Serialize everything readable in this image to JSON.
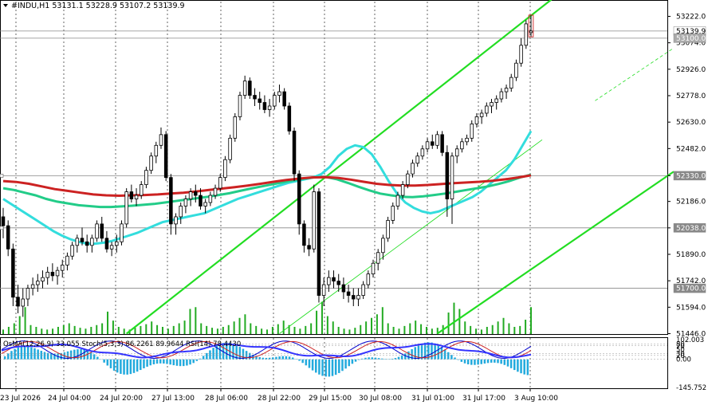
{
  "header": {
    "title": "#INDU,H1  53131.1 53228.9 53107.2 53139.9",
    "indicator_label": "OsMA(12,26,9) 33.055  Stoch(5,3,3) 86.2261 89.9644  RSI(14) 78.4430"
  },
  "colors": {
    "candle": "#000000",
    "channel": "#22dd22",
    "ma_fast": "#33dddd",
    "ma_mid": "#22cc88",
    "ma_slow": "#cc2222",
    "volume": "#22aa22",
    "osma": "#22aadd",
    "stoch_main": "#0000cc",
    "stoch_signal": "#cc2222",
    "rsi": "#3333ff",
    "grid": "#000000",
    "hline": "#888888"
  },
  "chart_data": [
    {
      "type": "candlestick",
      "title": "#INDU,H1",
      "last_ohlc": {
        "open": 53131.1,
        "high": 53228.9,
        "low": 53107.2,
        "close": 53139.9
      },
      "ylim": [
        51446,
        53300
      ],
      "y_ticks": [
        "53222.0",
        "53074.0",
        "52926.0",
        "52778.0",
        "52630.0",
        "52482.0",
        "52330.0",
        "52186.0",
        "52038.0",
        "51890.0",
        "51742.0",
        "51594.0",
        "51446.0"
      ],
      "price_tags": [
        "53139.9",
        "53100.0",
        "52330.0",
        "52038.0",
        "51700.0"
      ],
      "x_ticks": [
        "23 Jul 2026",
        "24 Jul 04:00",
        "24 Jul 20:00",
        "27 Jul 13:00",
        "28 Jul 06:00",
        "28 Jul 22:00",
        "29 Jul 15:00",
        "30 Jul 08:00",
        "31 Jul 01:00",
        "31 Jul 17:00",
        "3 Aug 10:00"
      ],
      "candles": [
        [
          52100,
          52150,
          51980,
          52050
        ],
        [
          52050,
          52080,
          51880,
          51920
        ],
        [
          51920,
          51950,
          51600,
          51650
        ],
        [
          51650,
          51720,
          51560,
          51600
        ],
        [
          51600,
          51700,
          51540,
          51640
        ],
        [
          51640,
          51720,
          51600,
          51700
        ],
        [
          51700,
          51760,
          51660,
          51720
        ],
        [
          51720,
          51780,
          51680,
          51740
        ],
        [
          51740,
          51800,
          51700,
          51760
        ],
        [
          51760,
          51820,
          51720,
          51790
        ],
        [
          51790,
          51840,
          51740,
          51770
        ],
        [
          51770,
          51820,
          51720,
          51800
        ],
        [
          51800,
          51860,
          51760,
          51830
        ],
        [
          51830,
          51900,
          51800,
          51880
        ],
        [
          51880,
          51960,
          51860,
          51940
        ],
        [
          51940,
          52000,
          51900,
          51980
        ],
        [
          51980,
          52040,
          51940,
          51960
        ],
        [
          51960,
          52000,
          51900,
          51940
        ],
        [
          51940,
          52000,
          51900,
          51980
        ],
        [
          51980,
          52080,
          51960,
          52060
        ],
        [
          52060,
          52100,
          51960,
          51980
        ],
        [
          51980,
          52020,
          51900,
          51920
        ],
        [
          51920,
          51960,
          51880,
          51940
        ],
        [
          51940,
          52000,
          51900,
          51960
        ],
        [
          51960,
          52080,
          51940,
          52060
        ],
        [
          52060,
          52260,
          52040,
          52240
        ],
        [
          52240,
          52280,
          52180,
          52200
        ],
        [
          52200,
          52260,
          52160,
          52220
        ],
        [
          52220,
          52300,
          52200,
          52280
        ],
        [
          52280,
          52380,
          52260,
          52360
        ],
        [
          52360,
          52460,
          52340,
          52440
        ],
        [
          52440,
          52520,
          52400,
          52500
        ],
        [
          52500,
          52600,
          52480,
          52560
        ],
        [
          52560,
          52580,
          52300,
          52320
        ],
        [
          52320,
          52340,
          52000,
          52060
        ],
        [
          52060,
          52120,
          52000,
          52100
        ],
        [
          52100,
          52180,
          52060,
          52160
        ],
        [
          52160,
          52220,
          52120,
          52200
        ],
        [
          52200,
          52260,
          52160,
          52240
        ],
        [
          52240,
          52280,
          52180,
          52220
        ],
        [
          52220,
          52260,
          52140,
          52160
        ],
        [
          52160,
          52200,
          52120,
          52180
        ],
        [
          52180,
          52240,
          52160,
          52220
        ],
        [
          52220,
          52280,
          52200,
          52260
        ],
        [
          52260,
          52340,
          52240,
          52320
        ],
        [
          52320,
          52440,
          52300,
          52420
        ],
        [
          52420,
          52560,
          52400,
          52540
        ],
        [
          52540,
          52680,
          52520,
          52660
        ],
        [
          52660,
          52800,
          52640,
          52780
        ],
        [
          52780,
          52890,
          52760,
          52860
        ],
        [
          52860,
          52880,
          52760,
          52780
        ],
        [
          52780,
          52820,
          52720,
          52760
        ],
        [
          52760,
          52800,
          52700,
          52740
        ],
        [
          52740,
          52780,
          52680,
          52700
        ],
        [
          52700,
          52760,
          52660,
          52720
        ],
        [
          52720,
          52800,
          52700,
          52780
        ],
        [
          52780,
          52840,
          52740,
          52800
        ],
        [
          52800,
          52820,
          52700,
          52720
        ],
        [
          52720,
          52740,
          52560,
          52580
        ],
        [
          52580,
          52600,
          52300,
          52340
        ],
        [
          52340,
          52360,
          52000,
          52060
        ],
        [
          52060,
          52080,
          51900,
          51940
        ],
        [
          51940,
          51980,
          51880,
          51920
        ],
        [
          51920,
          52280,
          51900,
          52240
        ],
        [
          52240,
          52260,
          51620,
          51660
        ],
        [
          51660,
          51760,
          51600,
          51720
        ],
        [
          51720,
          51800,
          51680,
          51760
        ],
        [
          51760,
          51800,
          51700,
          51740
        ],
        [
          51740,
          51780,
          51680,
          51720
        ],
        [
          51720,
          51760,
          51640,
          51680
        ],
        [
          51680,
          51720,
          51620,
          51660
        ],
        [
          51660,
          51700,
          51600,
          51640
        ],
        [
          51640,
          51700,
          51600,
          51660
        ],
        [
          51660,
          51740,
          51640,
          51720
        ],
        [
          51720,
          51800,
          51700,
          51780
        ],
        [
          51780,
          51860,
          51760,
          51840
        ],
        [
          51840,
          51920,
          51800,
          51900
        ],
        [
          51900,
          52000,
          51860,
          51980
        ],
        [
          51980,
          52100,
          51960,
          52080
        ],
        [
          52080,
          52180,
          52060,
          52160
        ],
        [
          52160,
          52240,
          52140,
          52220
        ],
        [
          52220,
          52300,
          52200,
          52280
        ],
        [
          52280,
          52360,
          52260,
          52340
        ],
        [
          52340,
          52420,
          52320,
          52400
        ],
        [
          52400,
          52460,
          52380,
          52440
        ],
        [
          52440,
          52500,
          52420,
          52480
        ],
        [
          52480,
          52540,
          52460,
          52520
        ],
        [
          52520,
          52560,
          52480,
          52500
        ],
        [
          52500,
          52580,
          52480,
          52560
        ],
        [
          52560,
          52580,
          52440,
          52460
        ],
        [
          52460,
          52500,
          52100,
          52200
        ],
        [
          52200,
          52460,
          52060,
          52440
        ],
        [
          52440,
          52500,
          52400,
          52480
        ],
        [
          52480,
          52540,
          52460,
          52520
        ],
        [
          52520,
          52560,
          52500,
          52540
        ],
        [
          52540,
          52640,
          52520,
          52620
        ],
        [
          52620,
          52680,
          52600,
          52660
        ],
        [
          52660,
          52700,
          52620,
          52680
        ],
        [
          52680,
          52740,
          52660,
          52720
        ],
        [
          52720,
          52760,
          52680,
          52740
        ],
        [
          52740,
          52780,
          52700,
          52760
        ],
        [
          52760,
          52820,
          52740,
          52800
        ],
        [
          52800,
          52840,
          52760,
          52820
        ],
        [
          52820,
          52900,
          52800,
          52880
        ],
        [
          52880,
          52980,
          52860,
          52960
        ],
        [
          52960,
          53100,
          52940,
          53060
        ],
        [
          53060,
          53200,
          53040,
          53180
        ],
        [
          53131.1,
          53228.9,
          53107.2,
          53139.9
        ]
      ],
      "moving_averages": [
        {
          "name": "fast",
          "values": [
            52200,
            52170,
            52140,
            52110,
            52080,
            52050,
            52020,
            51995,
            51975,
            51960,
            51950,
            51950,
            51955,
            51965,
            51980,
            51995,
            52010,
            52030,
            52050,
            52070,
            52080,
            52090,
            52100,
            52110,
            52120,
            52140,
            52160,
            52180,
            52200,
            52215,
            52230,
            52245,
            52260,
            52275,
            52290,
            52300,
            52310,
            52320,
            52340,
            52380,
            52440,
            52480,
            52500,
            52490,
            52450,
            52380,
            52300,
            52230,
            52180,
            52150,
            52130,
            52120,
            52130,
            52150,
            52170,
            52190,
            52210,
            52240,
            52280,
            52320,
            52360,
            52420,
            52500,
            52580
          ]
        },
        {
          "name": "mid",
          "values": [
            52260,
            52250,
            52235,
            52220,
            52200,
            52185,
            52175,
            52165,
            52160,
            52155,
            52155,
            52158,
            52162,
            52167,
            52172,
            52180,
            52188,
            52196,
            52204,
            52212,
            52222,
            52232,
            52245,
            52258,
            52270,
            52282,
            52294,
            52305,
            52315,
            52322,
            52322,
            52310,
            52290,
            52268,
            52248,
            52230,
            52220,
            52212,
            52210,
            52215,
            52222,
            52230,
            52240,
            52250,
            52260,
            52270,
            52284,
            52300,
            52320,
            52336
          ]
        },
        {
          "name": "slow",
          "values": [
            52300,
            52295,
            52285,
            52270,
            52255,
            52245,
            52235,
            52225,
            52220,
            52218,
            52220,
            52222,
            52225,
            52230,
            52235,
            52242,
            52250,
            52258,
            52266,
            52275,
            52285,
            52296,
            52306,
            52314,
            52320,
            52322,
            52318,
            52308,
            52296,
            52285,
            52278,
            52275,
            52275,
            52278,
            52283,
            52288,
            52292,
            52296,
            52302,
            52310,
            52320,
            52332
          ]
        }
      ],
      "volume": [
        5,
        8,
        12,
        20,
        30,
        10,
        8,
        6,
        5,
        6,
        8,
        10,
        12,
        9,
        7,
        6,
        8,
        10,
        12,
        25,
        15,
        8,
        6,
        5,
        7,
        9,
        11,
        14,
        10,
        8,
        6,
        9,
        12,
        15,
        28,
        30,
        12,
        9,
        7,
        6,
        8,
        10,
        14,
        18,
        22,
        12,
        9,
        6,
        5,
        8,
        11,
        15,
        10,
        8,
        6,
        9,
        12,
        26,
        36,
        20,
        14,
        8,
        6,
        5,
        7,
        10,
        14,
        18,
        22,
        30,
        12,
        8,
        6,
        9,
        12,
        15,
        11,
        8,
        6,
        7,
        10,
        24,
        35,
        28,
        14,
        9,
        6,
        5,
        8,
        10,
        14,
        18,
        12,
        8,
        9,
        16,
        30
      ],
      "channel": "upward parallel channel"
    },
    {
      "type": "oscillators",
      "series": [
        {
          "name": "OsMA(12,26,9)",
          "last": 33.055
        },
        {
          "name": "Stoch(5,3,3)",
          "last_main": 86.2261,
          "last_signal": 89.9644
        },
        {
          "name": "RSI(14)",
          "last": 78.443
        }
      ],
      "y_ticks": [
        "102.003",
        "80",
        "70",
        "50",
        "30",
        "20",
        "0.00",
        "-145.752"
      ]
    }
  ]
}
